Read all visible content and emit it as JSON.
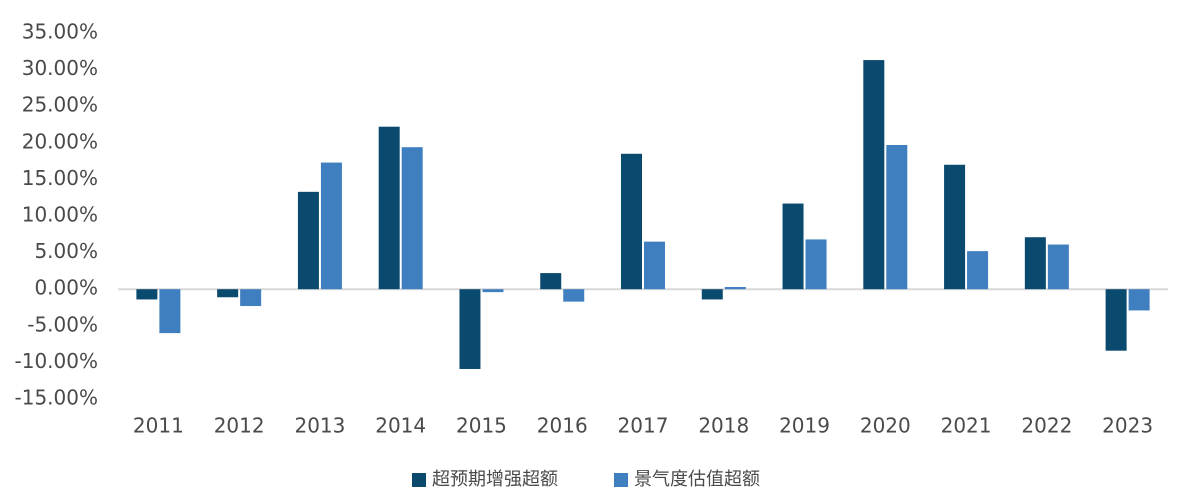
{
  "chart_data": {
    "type": "bar",
    "categories": [
      "2011",
      "2012",
      "2013",
      "2014",
      "2015",
      "2016",
      "2017",
      "2018",
      "2019",
      "2020",
      "2021",
      "2022",
      "2023"
    ],
    "series": [
      {
        "name": "超预期增强超额",
        "color": "#0b4a6f",
        "values": [
          -1.4,
          -1.1,
          13.3,
          22.2,
          -10.9,
          2.2,
          18.5,
          -1.4,
          11.7,
          31.3,
          17.0,
          7.1,
          -8.4
        ]
      },
      {
        "name": "景气度估值超额",
        "color": "#3f7fbf",
        "values": [
          -6.0,
          -2.3,
          17.3,
          19.4,
          -0.4,
          -1.7,
          6.5,
          0.3,
          6.8,
          19.7,
          5.2,
          6.1,
          -2.9
        ]
      }
    ],
    "y_ticks": [
      "35.00%",
      "30.00%",
      "25.00%",
      "20.00%",
      "15.00%",
      "10.00%",
      "5.00%",
      "0.00%",
      "-5.00%",
      "-10.00%",
      "-15.00%"
    ],
    "y_tick_values": [
      35,
      30,
      25,
      20,
      15,
      10,
      5,
      0,
      -5,
      -10,
      -15
    ],
    "ylim": [
      -15,
      35
    ],
    "grid": false,
    "legend_position": "bottom",
    "title": "",
    "xlabel": "",
    "ylabel": ""
  }
}
